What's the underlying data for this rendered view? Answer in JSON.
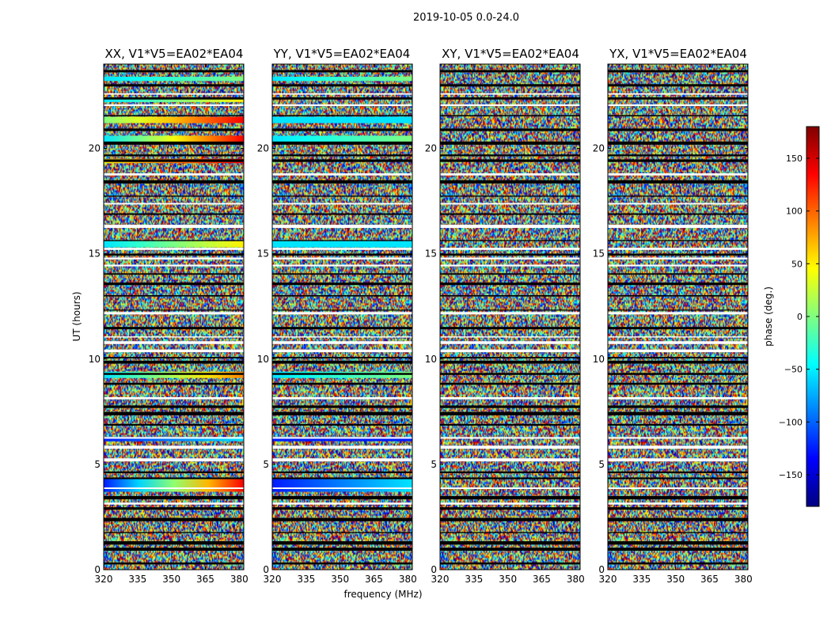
{
  "chart_data": {
    "type": "heatmap",
    "suptitle": "2019-10-05 0.0-24.0",
    "xlabel": "frequency (MHz)",
    "ylabel": "UT (hours)",
    "xlim": [
      320,
      382
    ],
    "ylim": [
      0,
      24
    ],
    "xticks": [
      "320",
      "335",
      "350",
      "365",
      "380"
    ],
    "yticks": [
      "0",
      "5",
      "10",
      "15",
      "20"
    ],
    "panels": [
      {
        "title": "XX, V1*V5=EA02*EA04",
        "coherent_bands": [
          [
            3.7,
            4.3,
            "blue-to-red"
          ],
          [
            6.1,
            6.3,
            "blue-cyan"
          ],
          [
            9.1,
            9.4,
            "cyan-to-orange"
          ],
          [
            15.3,
            15.6,
            "cyan-yellow"
          ],
          [
            19.3,
            19.5,
            "yellow-red"
          ],
          [
            20.3,
            20.6,
            "cyan-to-red"
          ],
          [
            21.2,
            21.5,
            "green-to-red"
          ],
          [
            22.2,
            22.4,
            "cyan-yellow"
          ],
          [
            23.2,
            23.4,
            "cyan-green"
          ]
        ]
      },
      {
        "title": "YY, V1*V5=EA02*EA04",
        "coherent_bands": [
          [
            3.7,
            4.3,
            "blue-cyan"
          ],
          [
            6.1,
            6.3,
            "blue"
          ],
          [
            9.1,
            9.4,
            "cyan-green"
          ],
          [
            15.3,
            15.6,
            "cyan"
          ],
          [
            20.3,
            20.6,
            "cyan-green"
          ],
          [
            21.2,
            21.5,
            "cyan"
          ],
          [
            23.2,
            23.4,
            "cyan-green"
          ]
        ]
      },
      {
        "title": "XY, V1*V5=EA02*EA04",
        "coherent_bands": []
      },
      {
        "title": "YX, V1*V5=EA02*EA04",
        "coherent_bands": []
      }
    ],
    "colorbar": {
      "label": "phase (deg.)",
      "range": [
        -180,
        180
      ],
      "ticks": [
        "−150",
        "−100",
        "−50",
        "0",
        "50",
        "100",
        "150"
      ],
      "tick_values": [
        -150,
        -100,
        -50,
        0,
        50,
        100,
        150
      ],
      "colormap": "jet"
    }
  }
}
